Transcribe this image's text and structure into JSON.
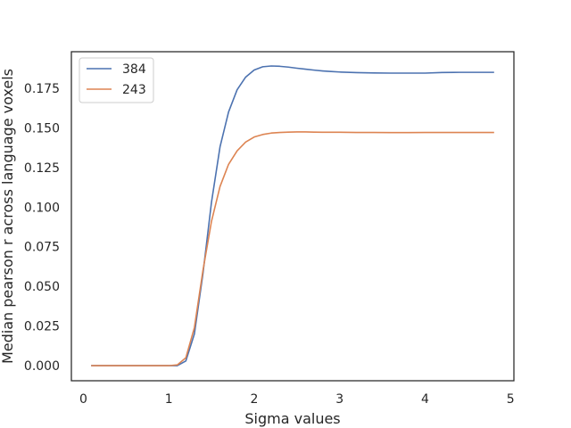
{
  "chart_data": {
    "type": "line",
    "title": "",
    "xlabel": "Sigma values",
    "ylabel": "Median pearson r across language voxels",
    "xlim": [
      -0.14,
      5.04
    ],
    "ylim": [
      -0.0095,
      0.198
    ],
    "xticks": [
      0,
      1,
      2,
      3,
      4,
      5
    ],
    "xtick_labels": [
      "0",
      "1",
      "2",
      "3",
      "4",
      "5"
    ],
    "yticks": [
      0.0,
      0.025,
      0.05,
      0.075,
      0.1,
      0.125,
      0.15,
      0.175
    ],
    "ytick_labels": [
      "0.000",
      "0.025",
      "0.050",
      "0.075",
      "0.100",
      "0.125",
      "0.150",
      "0.175"
    ],
    "grid": false,
    "legend_position": "top-left",
    "series": [
      {
        "name": "384",
        "color": "#4c72b0",
        "x": [
          0.1,
          0.2,
          0.3,
          0.4,
          0.5,
          0.6,
          0.7,
          0.8,
          0.9,
          1.0,
          1.1,
          1.2,
          1.3,
          1.4,
          1.5,
          1.6,
          1.7,
          1.8,
          1.9,
          2.0,
          2.1,
          2.2,
          2.3,
          2.4,
          2.5,
          2.6,
          2.7,
          2.8,
          2.9,
          3.0,
          3.2,
          3.4,
          3.6,
          3.8,
          4.0,
          4.2,
          4.4,
          4.6,
          4.8
        ],
        "y": [
          0.0,
          0.0,
          0.0,
          0.0,
          0.0,
          0.0,
          0.0,
          0.0,
          0.0,
          0.0,
          0.0,
          0.003,
          0.02,
          0.058,
          0.103,
          0.138,
          0.16,
          0.174,
          0.182,
          0.1865,
          0.1885,
          0.189,
          0.1888,
          0.1883,
          0.1876,
          0.187,
          0.1864,
          0.1859,
          0.1855,
          0.1852,
          0.1848,
          0.1846,
          0.1845,
          0.1845,
          0.1845,
          0.1849,
          0.185,
          0.185,
          0.185
        ]
      },
      {
        "name": "243",
        "color": "#dd8452",
        "x": [
          0.1,
          0.2,
          0.3,
          0.4,
          0.5,
          0.6,
          0.7,
          0.8,
          0.9,
          1.0,
          1.1,
          1.2,
          1.3,
          1.4,
          1.5,
          1.6,
          1.7,
          1.8,
          1.9,
          2.0,
          2.1,
          2.2,
          2.3,
          2.4,
          2.5,
          2.6,
          2.7,
          2.8,
          2.9,
          3.0,
          3.2,
          3.4,
          3.6,
          3.8,
          4.0,
          4.2,
          4.4,
          4.6,
          4.8
        ],
        "y": [
          0.0,
          0.0,
          0.0,
          0.0,
          0.0,
          0.0,
          0.0,
          0.0,
          0.0,
          0.0,
          0.0005,
          0.005,
          0.024,
          0.06,
          0.091,
          0.113,
          0.127,
          0.1355,
          0.141,
          0.1442,
          0.1458,
          0.1467,
          0.1471,
          0.1473,
          0.1474,
          0.1474,
          0.1473,
          0.1472,
          0.1472,
          0.1472,
          0.1471,
          0.1471,
          0.147,
          0.147,
          0.1471,
          0.1471,
          0.1471,
          0.1471,
          0.1471
        ]
      }
    ]
  }
}
